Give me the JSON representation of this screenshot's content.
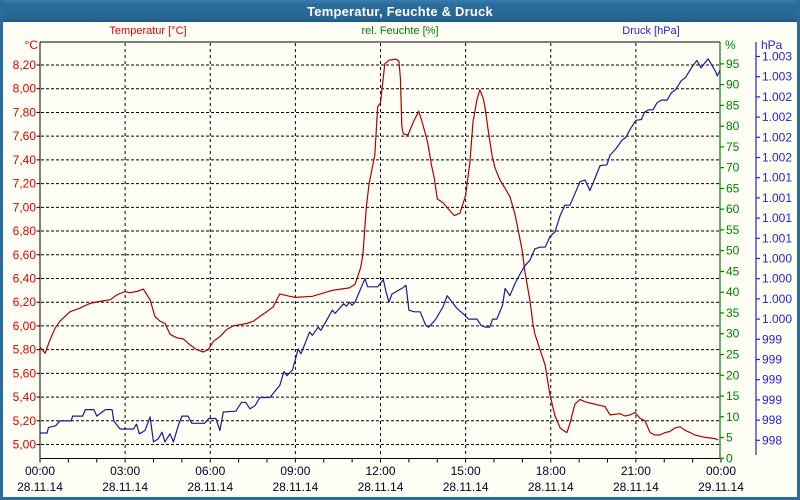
{
  "window": {
    "title": "Temperatur, Feuchte & Druck"
  },
  "header_labels": {
    "temperature": "Temperatur [°C]",
    "humidity": "rel. Feuchte [%]",
    "pressure": "Druck [hPa]"
  },
  "colors": {
    "background": "#fffff5",
    "frame_blue": "#2b6c9f",
    "plot_border": "#000000",
    "grid": "#000000",
    "temp_label": "#dc0000",
    "temp_curve": "#b00000",
    "humidity": "#008000",
    "pressure_label": "#2222dd",
    "pressure_curve": "#1a1a99",
    "x_label": "#000028",
    "title_text": "#ffffff"
  },
  "chart_data": {
    "type": "line",
    "title": "Temperatur, Feuchte & Druck",
    "grid": true,
    "x_axis": {
      "hours_span": [
        0,
        24
      ],
      "major_tick_every_h": 3,
      "minor_tick_every_h": 1,
      "tick_times": [
        "00:00",
        "03:00",
        "06:00",
        "09:00",
        "12:00",
        "15:00",
        "18:00",
        "21:00",
        "00:00"
      ],
      "tick_dates": [
        "28.11.14",
        "28.11.14",
        "28.11.14",
        "28.11.14",
        "28.11.14",
        "28.11.14",
        "28.11.14",
        "28.11.14",
        "29.11.14"
      ]
    },
    "temp_axis": {
      "unit": "°C",
      "side": "left",
      "min": 5.0,
      "max": 8.2,
      "step": 0.2,
      "tick_labels": [
        "8,20",
        "8,00",
        "7,80",
        "7,60",
        "7,40",
        "7,20",
        "7,00",
        "6,80",
        "6,60",
        "6,40",
        "6,20",
        "6,00",
        "5,80",
        "5,60",
        "5,40",
        "5,20",
        "5,00"
      ]
    },
    "humidity_axis": {
      "unit": "%",
      "side": "right-inner",
      "min": 0,
      "max": 95,
      "step": 5,
      "tick_labels": [
        "95",
        "90",
        "85",
        "80",
        "75",
        "70",
        "65",
        "60",
        "55",
        "50",
        "45",
        "40",
        "35",
        "30",
        "25",
        "20",
        "15",
        "10",
        "5",
        "0"
      ]
    },
    "pressure_axis": {
      "unit": "hPa",
      "side": "right-outer",
      "tick_labels": [
        "1.003",
        "1.003",
        "1.002",
        "1.002",
        "1.002",
        "1.002",
        "1.001",
        "1.001",
        "1.001",
        "1.001",
        "1.000",
        "1.000",
        "1.000",
        "1.000",
        "999",
        "999",
        "999",
        "999",
        "998",
        "998"
      ],
      "tick_top_value": 1003.15,
      "tick_step": 0.25
    },
    "series": [
      {
        "name": "Temperatur",
        "axis": "temp",
        "points": [
          [
            0,
            5.82
          ],
          [
            0.18,
            5.77
          ],
          [
            0.35,
            5.88
          ],
          [
            0.53,
            5.98
          ],
          [
            0.7,
            6.04
          ],
          [
            1.06,
            6.12
          ],
          [
            1.41,
            6.15
          ],
          [
            1.76,
            6.19
          ],
          [
            2.17,
            6.21
          ],
          [
            2.47,
            6.22
          ],
          [
            2.7,
            6.26
          ],
          [
            3,
            6.29
          ],
          [
            3.17,
            6.28
          ],
          [
            3.41,
            6.29
          ],
          [
            3.64,
            6.31
          ],
          [
            3.88,
            6.22
          ],
          [
            4.05,
            6.08
          ],
          [
            4.23,
            6.04
          ],
          [
            4.41,
            6.02
          ],
          [
            4.58,
            5.93
          ],
          [
            4.82,
            5.9
          ],
          [
            5.05,
            5.89
          ],
          [
            5.29,
            5.84
          ],
          [
            5.52,
            5.8
          ],
          [
            5.76,
            5.78
          ],
          [
            5.93,
            5.8
          ],
          [
            6.11,
            5.87
          ],
          [
            6.34,
            5.91
          ],
          [
            6.58,
            5.97
          ],
          [
            6.81,
            6
          ],
          [
            7.05,
            6.01
          ],
          [
            7.28,
            6.02
          ],
          [
            7.52,
            6.04
          ],
          [
            7.75,
            6.08
          ],
          [
            7.99,
            6.12
          ],
          [
            8.22,
            6.16
          ],
          [
            8.45,
            6.27
          ],
          [
            8.8,
            6.25
          ],
          [
            9,
            6.24
          ],
          [
            9.6,
            6.25
          ],
          [
            10.3,
            6.3
          ],
          [
            10.6,
            6.31
          ],
          [
            10.9,
            6.32
          ],
          [
            11.1,
            6.35
          ],
          [
            11.3,
            6.49
          ],
          [
            11.38,
            6.6
          ],
          [
            11.5,
            7
          ],
          [
            11.6,
            7.2
          ],
          [
            11.8,
            7.44
          ],
          [
            11.9,
            7.85
          ],
          [
            12,
            7.88
          ],
          [
            12.15,
            8.21
          ],
          [
            12.3,
            8.24
          ],
          [
            12.55,
            8.25
          ],
          [
            12.65,
            8.23
          ],
          [
            12.7,
            8.09
          ],
          [
            12.75,
            7.69
          ],
          [
            12.8,
            7.62
          ],
          [
            12.97,
            7.61
          ],
          [
            13.16,
            7.72
          ],
          [
            13.35,
            7.81
          ],
          [
            13.5,
            7.69
          ],
          [
            13.66,
            7.55
          ],
          [
            13.8,
            7.35
          ],
          [
            13.9,
            7.24
          ],
          [
            14,
            7.07
          ],
          [
            14.2,
            7.04
          ],
          [
            14.45,
            6.97
          ],
          [
            14.6,
            6.93
          ],
          [
            14.8,
            6.95
          ],
          [
            15,
            7.1
          ],
          [
            15.15,
            7.38
          ],
          [
            15.26,
            7.72
          ],
          [
            15.4,
            7.91
          ],
          [
            15.5,
            7.99
          ],
          [
            15.62,
            7.92
          ],
          [
            15.68,
            7.85
          ],
          [
            15.79,
            7.66
          ],
          [
            15.93,
            7.44
          ],
          [
            16.04,
            7.33
          ],
          [
            16.21,
            7.23
          ],
          [
            16.39,
            7.16
          ],
          [
            16.56,
            7.09
          ],
          [
            16.74,
            6.94
          ],
          [
            16.85,
            6.81
          ],
          [
            16.99,
            6.64
          ],
          [
            17.09,
            6.46
          ],
          [
            17.27,
            6.21
          ],
          [
            17.37,
            6.02
          ],
          [
            17.44,
            5.93
          ],
          [
            17.62,
            5.8
          ],
          [
            17.8,
            5.67
          ],
          [
            17.97,
            5.42
          ],
          [
            18.15,
            5.24
          ],
          [
            18.33,
            5.14
          ],
          [
            18.5,
            5.11
          ],
          [
            18.57,
            5.1
          ],
          [
            18.68,
            5.18
          ],
          [
            18.85,
            5.34
          ],
          [
            19.03,
            5.38
          ],
          [
            19.21,
            5.36
          ],
          [
            19.38,
            5.35
          ],
          [
            19.74,
            5.33
          ],
          [
            19.91,
            5.32
          ],
          [
            20.09,
            5.25
          ],
          [
            20.44,
            5.26
          ],
          [
            20.62,
            5.24
          ],
          [
            20.79,
            5.25
          ],
          [
            20.97,
            5.27
          ],
          [
            21.15,
            5.22
          ],
          [
            21.32,
            5.2
          ],
          [
            21.5,
            5.1
          ],
          [
            21.67,
            5.08
          ],
          [
            21.85,
            5.08
          ],
          [
            22.03,
            5.1
          ],
          [
            22.2,
            5.11
          ],
          [
            22.38,
            5.14
          ],
          [
            22.56,
            5.15
          ],
          [
            22.73,
            5.12
          ],
          [
            22.91,
            5.1
          ],
          [
            23.08,
            5.08
          ],
          [
            23.26,
            5.07
          ],
          [
            23.44,
            5.06
          ],
          [
            23.79,
            5.05
          ],
          [
            23.89,
            5.04
          ]
        ]
      },
      {
        "name": "Druck",
        "axis": "pressure",
        "points": [
          [
            0,
            998.49
          ],
          [
            0.25,
            998.49
          ],
          [
            0.3,
            998.56
          ],
          [
            0.55,
            998.58
          ],
          [
            0.7,
            998.64
          ],
          [
            1.1,
            998.64
          ],
          [
            1.15,
            998.7
          ],
          [
            1.5,
            998.7
          ],
          [
            1.6,
            998.78
          ],
          [
            1.9,
            998.78
          ],
          [
            2,
            998.7
          ],
          [
            2.3,
            998.78
          ],
          [
            2.54,
            998.78
          ],
          [
            2.6,
            998.64
          ],
          [
            2.82,
            998.54
          ],
          [
            3.3,
            998.54
          ],
          [
            3.4,
            998.6
          ],
          [
            3.5,
            998.48
          ],
          [
            3.7,
            998.52
          ],
          [
            3.88,
            998.69
          ],
          [
            4,
            998.38
          ],
          [
            4.17,
            998.42
          ],
          [
            4.3,
            998.5
          ],
          [
            4.4,
            998.38
          ],
          [
            4.58,
            998.48
          ],
          [
            4.7,
            998.38
          ],
          [
            4.88,
            998.59
          ],
          [
            5,
            998.7
          ],
          [
            5.22,
            998.7
          ],
          [
            5.35,
            998.61
          ],
          [
            5.8,
            998.61
          ],
          [
            5.95,
            998.67
          ],
          [
            6.2,
            998.67
          ],
          [
            6.34,
            998.52
          ],
          [
            6.46,
            998.75
          ],
          [
            6.9,
            998.76
          ],
          [
            7.1,
            998.87
          ],
          [
            7.25,
            998.87
          ],
          [
            7.4,
            998.79
          ],
          [
            7.58,
            998.83
          ],
          [
            7.75,
            998.93
          ],
          [
            8.1,
            998.93
          ],
          [
            8.45,
            999.08
          ],
          [
            8.6,
            999.25
          ],
          [
            8.7,
            999.2
          ],
          [
            8.9,
            999.27
          ],
          [
            9.1,
            999.53
          ],
          [
            9.2,
            999.47
          ],
          [
            9.5,
            999.74
          ],
          [
            9.6,
            999.7
          ],
          [
            9.8,
            999.8
          ],
          [
            9.9,
            999.76
          ],
          [
            10.3,
            1000.01
          ],
          [
            10.4,
            999.97
          ],
          [
            10.7,
            1000.09
          ],
          [
            10.8,
            1000.06
          ],
          [
            10.9,
            1000.11
          ],
          [
            11,
            1000.07
          ],
          [
            11.1,
            1000.11
          ],
          [
            11.45,
            1000.4
          ],
          [
            11.55,
            1000.3
          ],
          [
            11.9,
            1000.3
          ],
          [
            12.1,
            1000.39
          ],
          [
            12.2,
            1000.23
          ],
          [
            12.3,
            1000.11
          ],
          [
            12.4,
            1000.21
          ],
          [
            12.8,
            1000.29
          ],
          [
            12.9,
            1000.32
          ],
          [
            13,
            1000.01
          ],
          [
            13.2,
            999.99
          ],
          [
            13.4,
            999.99
          ],
          [
            13.6,
            999.82
          ],
          [
            13.7,
            999.8
          ],
          [
            13.95,
            999.9
          ],
          [
            14.2,
            1000.05
          ],
          [
            14.35,
            1000.19
          ],
          [
            14.7,
            1000.03
          ],
          [
            14.9,
            999.97
          ],
          [
            15.1,
            999.9
          ],
          [
            15.4,
            999.9
          ],
          [
            15.55,
            999.82
          ],
          [
            15.7,
            999.8
          ],
          [
            15.85,
            999.8
          ],
          [
            15.95,
            999.9
          ],
          [
            16.1,
            999.9
          ],
          [
            16.3,
            1000.07
          ],
          [
            16.39,
            1000.28
          ],
          [
            16.56,
            1000.19
          ],
          [
            16.74,
            1000.34
          ],
          [
            16.92,
            1000.46
          ],
          [
            17.09,
            1000.56
          ],
          [
            17.27,
            1000.63
          ],
          [
            17.44,
            1000.77
          ],
          [
            17.62,
            1000.79
          ],
          [
            17.8,
            1000.79
          ],
          [
            17.97,
            1000.92
          ],
          [
            18.15,
            1000.98
          ],
          [
            18.33,
            1001.18
          ],
          [
            18.5,
            1001.31
          ],
          [
            18.68,
            1001.31
          ],
          [
            19.03,
            1001.6
          ],
          [
            19.21,
            1001.62
          ],
          [
            19.38,
            1001.49
          ],
          [
            19.74,
            1001.8
          ],
          [
            19.98,
            1001.81
          ],
          [
            20.09,
            1001.93
          ],
          [
            20.3,
            1002.01
          ],
          [
            20.5,
            1002.11
          ],
          [
            20.65,
            1002.15
          ],
          [
            20.8,
            1002.25
          ],
          [
            21,
            1002.36
          ],
          [
            21.2,
            1002.37
          ],
          [
            21.3,
            1002.46
          ],
          [
            21.45,
            1002.49
          ],
          [
            21.6,
            1002.49
          ],
          [
            21.75,
            1002.58
          ],
          [
            21.9,
            1002.61
          ],
          [
            22.1,
            1002.61
          ],
          [
            22.25,
            1002.7
          ],
          [
            22.4,
            1002.74
          ],
          [
            22.6,
            1002.85
          ],
          [
            22.75,
            1002.89
          ],
          [
            22.85,
            1002.95
          ],
          [
            23,
            1003.03
          ],
          [
            23.15,
            1003.1
          ],
          [
            23.3,
            1003.01
          ],
          [
            23.45,
            1003.08
          ],
          [
            23.55,
            1003.12
          ],
          [
            23.7,
            1003.03
          ],
          [
            23.8,
            1002.97
          ],
          [
            23.87,
            1002.91
          ],
          [
            23.95,
            1002.97
          ]
        ]
      }
    ]
  }
}
